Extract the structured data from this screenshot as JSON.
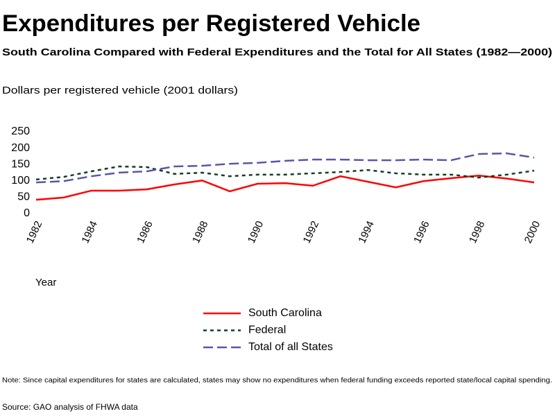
{
  "chart_data": {
    "type": "line",
    "title": "Expenditures per Registered Vehicle",
    "subtitle": "South Carolina Compared with Federal Expenditures and the Total for All States (1982—2000)",
    "y_label": "Dollars per registered vehicle (2001 dollars)",
    "x_label": "Year",
    "x": [
      1982,
      1983,
      1984,
      1985,
      1986,
      1987,
      1988,
      1989,
      1990,
      1991,
      1992,
      1993,
      1994,
      1995,
      1996,
      1997,
      1998,
      1999,
      2000
    ],
    "series": [
      {
        "name": "South Carolina",
        "color": "#ff0000",
        "dash": [],
        "values": [
          42,
          49,
          70,
          70,
          74,
          89,
          101,
          68,
          91,
          93,
          85,
          114,
          97,
          80,
          99,
          108,
          116,
          107,
          95
        ]
      },
      {
        "name": "Federal",
        "color": "#123d24",
        "dash": [
          5,
          5
        ],
        "values": [
          104,
          112,
          129,
          144,
          142,
          121,
          125,
          114,
          119,
          119,
          123,
          127,
          133,
          123,
          119,
          119,
          110,
          119,
          131
        ]
      },
      {
        "name": "Total of all States",
        "color": "#5a55a8",
        "dash": [
          14,
          6
        ],
        "values": [
          95,
          99,
          114,
          125,
          129,
          144,
          146,
          152,
          155,
          161,
          165,
          165,
          163,
          163,
          165,
          163,
          182,
          184,
          171
        ]
      }
    ],
    "xlim": [
      1982,
      2000
    ],
    "xticks": [
      1982,
      1984,
      1986,
      1988,
      1990,
      1992,
      1994,
      1996,
      1998,
      2000
    ],
    "ylim": [
      0,
      250
    ],
    "yticks": [
      0,
      50,
      100,
      150,
      200,
      250
    ],
    "grid": false,
    "note": "Note:  Since capital expenditures for states are calculated, states may show no expenditures when federal funding exceeds reported state/local capital spending.",
    "source": "Source: GAO analysis of FHWA data"
  }
}
